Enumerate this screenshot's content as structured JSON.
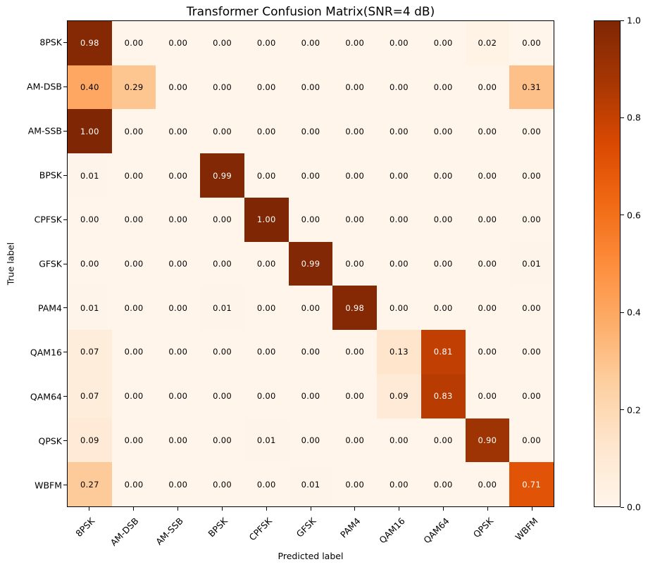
{
  "chart_data": {
    "type": "heatmap",
    "title": "Transformer Confusion Matrix(SNR=4 dB)",
    "xlabel": "Predicted label",
    "ylabel": "True label",
    "categories": [
      "8PSK",
      "AM-DSB",
      "AM-SSB",
      "BPSK",
      "CPFSK",
      "GFSK",
      "PAM4",
      "QAM16",
      "QAM64",
      "QPSK",
      "WBFM"
    ],
    "matrix": [
      [
        0.98,
        0.0,
        0.0,
        0.0,
        0.0,
        0.0,
        0.0,
        0.0,
        0.0,
        0.02,
        0.0
      ],
      [
        0.4,
        0.29,
        0.0,
        0.0,
        0.0,
        0.0,
        0.0,
        0.0,
        0.0,
        0.0,
        0.31
      ],
      [
        1.0,
        0.0,
        0.0,
        0.0,
        0.0,
        0.0,
        0.0,
        0.0,
        0.0,
        0.0,
        0.0
      ],
      [
        0.01,
        0.0,
        0.0,
        0.99,
        0.0,
        0.0,
        0.0,
        0.0,
        0.0,
        0.0,
        0.0
      ],
      [
        0.0,
        0.0,
        0.0,
        0.0,
        1.0,
        0.0,
        0.0,
        0.0,
        0.0,
        0.0,
        0.0
      ],
      [
        0.0,
        0.0,
        0.0,
        0.0,
        0.0,
        0.99,
        0.0,
        0.0,
        0.0,
        0.0,
        0.01
      ],
      [
        0.01,
        0.0,
        0.0,
        0.01,
        0.0,
        0.0,
        0.98,
        0.0,
        0.0,
        0.0,
        0.0
      ],
      [
        0.07,
        0.0,
        0.0,
        0.0,
        0.0,
        0.0,
        0.0,
        0.13,
        0.81,
        0.0,
        0.0
      ],
      [
        0.07,
        0.0,
        0.0,
        0.0,
        0.0,
        0.0,
        0.0,
        0.09,
        0.83,
        0.0,
        0.0
      ],
      [
        0.09,
        0.0,
        0.0,
        0.0,
        0.01,
        0.0,
        0.0,
        0.0,
        0.0,
        0.9,
        0.0
      ],
      [
        0.27,
        0.0,
        0.0,
        0.0,
        0.0,
        0.01,
        0.0,
        0.0,
        0.0,
        0.0,
        0.71
      ]
    ],
    "value_range": [
      0,
      1
    ],
    "colormap": "Oranges",
    "colormap_stops": [
      "#fff5eb",
      "#fee6ce",
      "#fdd0a2",
      "#fdae6b",
      "#fd8d3c",
      "#f16913",
      "#d94801",
      "#a63603",
      "#7f2704"
    ],
    "colorbar_ticks": [
      "0.0",
      "0.2",
      "0.4",
      "0.6",
      "0.8",
      "1.0"
    ],
    "annotation_threshold": 0.5,
    "annotation_color_high": "#ffffff",
    "annotation_color_low": "#000000",
    "axis_color": "#000000",
    "grid": false,
    "legend_position": "colorbar-right"
  }
}
